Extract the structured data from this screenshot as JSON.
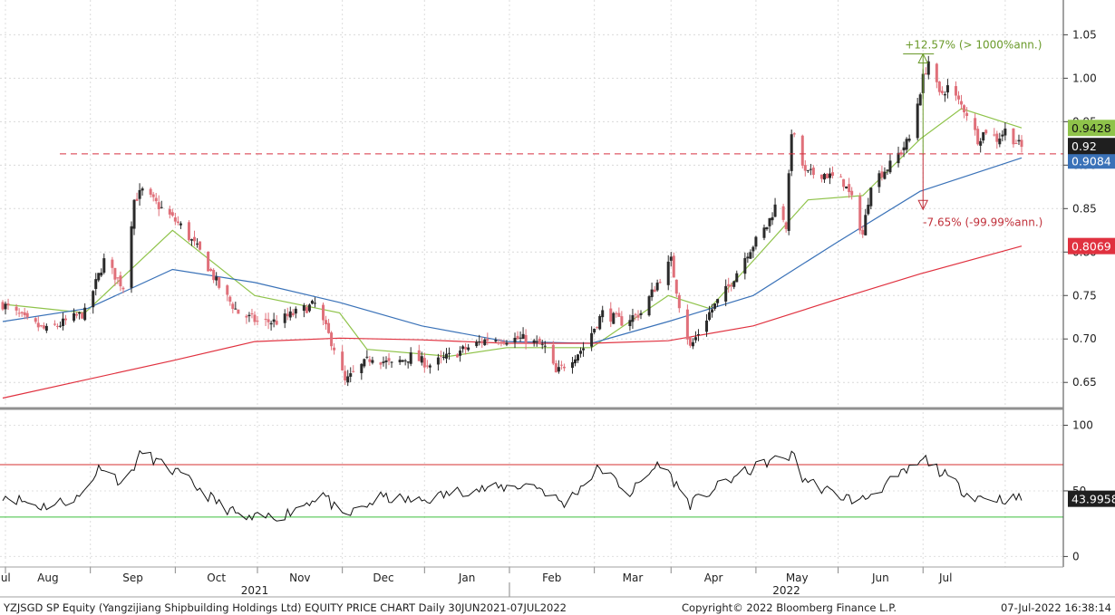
{
  "footer": {
    "left": "YZJSGD SP Equity (Yangzijiang Shipbuilding Holdings Ltd) EQUITY PRICE CHART  Daily 30JUN2021-07JUL2022",
    "center": "Copyright© 2022 Bloomberg Finance L.P.",
    "right": "07-Jul-2022 16:38:14"
  },
  "colors": {
    "up": "#2a2a2a",
    "down": "#e0707a",
    "ma_short": "#8fc34a",
    "ma_mid": "#3a72b8",
    "ma_long": "#e0313f",
    "rsi_line": "#111111",
    "rsi_upper": "#d63232",
    "rsi_lower": "#3cbf3c",
    "ref_dash": "#d63040",
    "ann_up": "#6a9a2a",
    "ann_down": "#c0303a"
  },
  "chart_data": [
    {
      "type": "candlestick",
      "ylim": [
        0.62,
        1.09
      ],
      "yticks": [
        "0.65",
        "0.70",
        "0.75",
        "0.80",
        "0.85",
        "0.90",
        "0.95",
        "1.00",
        "1.05"
      ],
      "grid": true,
      "x_start": "2021-06-30",
      "x_end": "2022-07-07",
      "months": [
        "Jul",
        "Aug",
        "Sep",
        "Oct",
        "Nov",
        "Dec",
        "Jan",
        "Feb",
        "Mar",
        "Apr",
        "May",
        "Jun",
        "Jul"
      ],
      "years": [
        "2021",
        "2022"
      ],
      "closes": [
        [
          "2021-06-30",
          0.74
        ],
        [
          "2021-07-09",
          0.72
        ],
        [
          "2021-07-16",
          0.71
        ],
        [
          "2021-07-23",
          0.72
        ],
        [
          "2021-07-30",
          0.73
        ],
        [
          "2021-08-06",
          0.79
        ],
        [
          "2021-08-13",
          0.76
        ],
        [
          "2021-08-17",
          0.86
        ],
        [
          "2021-08-20",
          0.87
        ],
        [
          "2021-08-27",
          0.85
        ],
        [
          "2021-09-03",
          0.83
        ],
        [
          "2021-09-10",
          0.8
        ],
        [
          "2021-09-17",
          0.76
        ],
        [
          "2021-09-24",
          0.73
        ],
        [
          "2021-10-01",
          0.72
        ],
        [
          "2021-10-08",
          0.72
        ],
        [
          "2021-10-15",
          0.73
        ],
        [
          "2021-10-22",
          0.74
        ],
        [
          "2021-10-29",
          0.69
        ],
        [
          "2021-11-02",
          0.65
        ],
        [
          "2021-11-05",
          0.66
        ],
        [
          "2021-11-12",
          0.68
        ],
        [
          "2021-11-19",
          0.67
        ],
        [
          "2021-11-26",
          0.68
        ],
        [
          "2021-12-03",
          0.67
        ],
        [
          "2021-12-10",
          0.68
        ],
        [
          "2021-12-17",
          0.69
        ],
        [
          "2021-12-24",
          0.7
        ],
        [
          "2021-12-31",
          0.7
        ],
        [
          "2022-01-07",
          0.7
        ],
        [
          "2022-01-14",
          0.69
        ],
        [
          "2022-01-18",
          0.66
        ],
        [
          "2022-01-21",
          0.67
        ],
        [
          "2022-01-28",
          0.69
        ],
        [
          "2022-02-04",
          0.73
        ],
        [
          "2022-02-11",
          0.72
        ],
        [
          "2022-02-18",
          0.73
        ],
        [
          "2022-02-25",
          0.77
        ],
        [
          "2022-03-01",
          0.79
        ],
        [
          "2022-03-04",
          0.74
        ],
        [
          "2022-03-08",
          0.69
        ],
        [
          "2022-03-15",
          0.73
        ],
        [
          "2022-03-22",
          0.76
        ],
        [
          "2022-03-29",
          0.8
        ],
        [
          "2022-04-05",
          0.83
        ],
        [
          "2022-04-09",
          0.86
        ],
        [
          "2022-04-12",
          0.83
        ],
        [
          "2022-04-14",
          0.94
        ],
        [
          "2022-04-19",
          0.89
        ],
        [
          "2022-04-26",
          0.89
        ],
        [
          "2022-05-03",
          0.88
        ],
        [
          "2022-05-06",
          0.86
        ],
        [
          "2022-05-10",
          0.82
        ],
        [
          "2022-05-13",
          0.88
        ],
        [
          "2022-05-20",
          0.9
        ],
        [
          "2022-05-27",
          0.93
        ],
        [
          "2022-06-01",
          1.0
        ],
        [
          "2022-06-03",
          1.02
        ],
        [
          "2022-06-07",
          0.98
        ],
        [
          "2022-06-10",
          0.99
        ],
        [
          "2022-06-17",
          0.96
        ],
        [
          "2022-06-21",
          0.93
        ],
        [
          "2022-06-24",
          0.94
        ],
        [
          "2022-06-28",
          0.93
        ],
        [
          "2022-07-01",
          0.94
        ],
        [
          "2022-07-07",
          0.92
        ]
      ],
      "moving_averages": [
        {
          "label": "0.9428",
          "level": 0.9428,
          "points": [
            [
              "2021-06-30",
              0.74
            ],
            [
              "2021-07-30",
              0.73
            ],
            [
              "2021-08-31",
              0.825
            ],
            [
              "2021-09-30",
              0.75
            ],
            [
              "2021-10-31",
              0.73
            ],
            [
              "2021-11-10",
              0.688
            ],
            [
              "2021-12-10",
              0.68
            ],
            [
              "2021-12-31",
              0.69
            ],
            [
              "2022-01-31",
              0.69
            ],
            [
              "2022-02-28",
              0.75
            ],
            [
              "2022-03-15",
              0.735
            ],
            [
              "2022-03-31",
              0.79
            ],
            [
              "2022-04-20",
              0.86
            ],
            [
              "2022-05-10",
              0.865
            ],
            [
              "2022-05-31",
              0.93
            ],
            [
              "2022-06-15",
              0.965
            ],
            [
              "2022-07-07",
              0.9428
            ]
          ]
        },
        {
          "label": "0.9084",
          "level": 0.9084,
          "points": [
            [
              "2021-06-30",
              0.72
            ],
            [
              "2021-07-31",
              0.735
            ],
            [
              "2021-08-31",
              0.78
            ],
            [
              "2021-09-30",
              0.765
            ],
            [
              "2021-10-31",
              0.742
            ],
            [
              "2021-11-30",
              0.715
            ],
            [
              "2021-12-31",
              0.697
            ],
            [
              "2022-01-31",
              0.695
            ],
            [
              "2022-02-28",
              0.72
            ],
            [
              "2022-03-31",
              0.75
            ],
            [
              "2022-04-30",
              0.81
            ],
            [
              "2022-05-31",
              0.87
            ],
            [
              "2022-07-07",
              0.9084
            ]
          ]
        },
        {
          "label": "0.8069",
          "level": 0.8069,
          "points": [
            [
              "2021-06-30",
              0.632
            ],
            [
              "2021-08-31",
              0.675
            ],
            [
              "2021-09-30",
              0.697
            ],
            [
              "2021-10-31",
              0.701
            ],
            [
              "2021-11-30",
              0.699
            ],
            [
              "2021-12-31",
              0.695
            ],
            [
              "2022-01-31",
              0.695
            ],
            [
              "2022-02-28",
              0.698
            ],
            [
              "2022-03-31",
              0.715
            ],
            [
              "2022-04-30",
              0.745
            ],
            [
              "2022-05-31",
              0.775
            ],
            [
              "2022-07-07",
              0.8069
            ]
          ]
        }
      ],
      "last_price": "0.92",
      "reference_line": 0.913,
      "annotations": {
        "high": {
          "date": "2022-06-01",
          "value": 1.028,
          "label": "+12.57% (> 1000%ann.)"
        },
        "low": {
          "date": "2022-06-01",
          "value": 0.849,
          "label": "-7.65% (-99.99%ann.)"
        }
      }
    },
    {
      "type": "line",
      "ylim": [
        -8,
        110
      ],
      "yticks": [
        "0",
        "50",
        "100"
      ],
      "upper": 70,
      "lower": 30,
      "last_value": "43.9958",
      "series": [
        [
          "2021-06-30",
          47
        ],
        [
          "2021-07-14",
          38
        ],
        [
          "2021-07-28",
          45
        ],
        [
          "2021-08-05",
          70
        ],
        [
          "2021-08-13",
          55
        ],
        [
          "2021-08-20",
          80
        ],
        [
          "2021-08-27",
          70
        ],
        [
          "2021-09-03",
          62
        ],
        [
          "2021-09-17",
          40
        ],
        [
          "2021-09-27",
          28
        ],
        [
          "2021-10-11",
          32
        ],
        [
          "2021-10-25",
          48
        ],
        [
          "2021-11-01",
          29
        ],
        [
          "2021-11-15",
          45
        ],
        [
          "2021-11-29",
          42
        ],
        [
          "2021-12-14",
          50
        ],
        [
          "2021-12-27",
          52
        ],
        [
          "2022-01-10",
          55
        ],
        [
          "2022-01-21",
          40
        ],
        [
          "2022-02-03",
          68
        ],
        [
          "2022-02-14",
          48
        ],
        [
          "2022-02-25",
          72
        ],
        [
          "2022-03-08",
          40
        ],
        [
          "2022-03-22",
          58
        ],
        [
          "2022-04-05",
          72
        ],
        [
          "2022-04-15",
          77
        ],
        [
          "2022-04-18",
          60
        ],
        [
          "2022-04-29",
          48
        ],
        [
          "2022-05-09",
          42
        ],
        [
          "2022-05-24",
          62
        ],
        [
          "2022-06-02",
          74
        ],
        [
          "2022-06-17",
          48
        ],
        [
          "2022-06-24",
          44
        ],
        [
          "2022-07-07",
          44
        ]
      ]
    }
  ]
}
